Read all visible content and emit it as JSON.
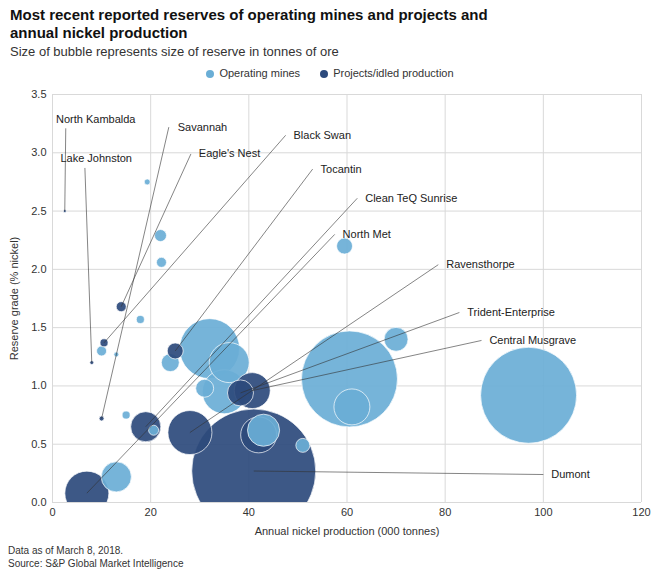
{
  "chart_data": {
    "type": "scatter",
    "title": "Most recent reported reserves of operating mines and projects and annual nickel production",
    "subtitle": "Size of bubble represents size of reserve in tonnes of ore",
    "x_label": "Annual nickel production (000 tonnes)",
    "y_label": "Reserve grade (% nickel)",
    "xlim": [
      0,
      120
    ],
    "xticks": [
      0,
      20,
      40,
      60,
      80,
      100,
      120
    ],
    "ylim": [
      0,
      3.5
    ],
    "yticks": [
      {
        "value": 0,
        "label": "0.0"
      },
      0.5,
      {
        "value": 1,
        "label": "1.0"
      },
      1.5,
      {
        "value": 2,
        "label": "2.0"
      },
      2.5,
      {
        "value": 3,
        "label": "3.0"
      },
      3.5
    ],
    "grid": true,
    "legend": "top",
    "series": [
      {
        "name": "Operating mines",
        "color": "#6aaed6",
        "x": [
          19.3,
          22,
          22.2,
          17.9,
          10,
          13,
          15,
          24,
          20.6,
          13,
          32,
          36,
          35,
          31,
          43,
          51,
          59.5,
          60.5,
          61,
          70,
          97
        ],
        "y": [
          2.75,
          2.29,
          2.06,
          1.57,
          1.3,
          1.27,
          0.75,
          1.2,
          0.62,
          0.22,
          1.32,
          1.2,
          0.95,
          0.98,
          0.62,
          0.49,
          2.2,
          1.06,
          0.82,
          1.4,
          0.92
        ],
        "reserve": [
          2.3,
          9.4,
          6.5,
          4.2,
          6.5,
          1.6,
          4.2,
          21,
          6.5,
          59,
          234,
          104,
          126,
          21,
          67,
          12.7,
          16.6,
          599,
          84,
          37,
          599
        ]
      },
      {
        "name": "Projects/idled production",
        "color": "#2c4a7c",
        "x": [
          2.5,
          8,
          10,
          14,
          10.5,
          25,
          19,
          7,
          28,
          38.3,
          40.7,
          41,
          42
        ],
        "y": [
          2.5,
          1.2,
          0.72,
          1.68,
          1.37,
          1.3,
          0.65,
          0.08,
          0.6,
          0.94,
          0.96,
          0.27,
          0.58
        ],
        "reserve": [
          0.6,
          1.0,
          1.6,
          6.5,
          4.2,
          16.6,
          59,
          126,
          126,
          44,
          84,
          1000,
          84
        ],
        "labels": [
          "North Kambalda",
          "Lake Johnston",
          "Savannah",
          "Eagle's Nest",
          "Black Swan",
          "Tocantin",
          "Clean TeQ Sunrise",
          "North Met",
          "Ravensthorpe",
          "Trident-Enterprise",
          "Central Musgrave",
          "Dumont",
          null
        ]
      }
    ],
    "footnotes": [
      "Data as of March 8, 2018.",
      "Source: S&P Global Market Intelligence"
    ]
  }
}
